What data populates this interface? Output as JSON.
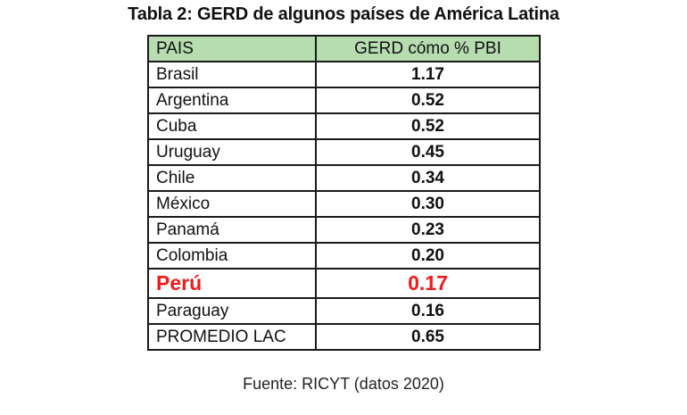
{
  "title": "Tabla 2: GERD de algunos países de América Latina",
  "table": {
    "headers": [
      "PAIS",
      "GERD cómo % PBI"
    ],
    "header_bg": "#b6dcb0",
    "highlight_color": "#f01a1a",
    "rows": [
      {
        "country": "Brasil",
        "value": "1.17"
      },
      {
        "country": "Argentina",
        "value": "0.52"
      },
      {
        "country": "Cuba",
        "value": "0.52"
      },
      {
        "country": "Uruguay",
        "value": "0.45"
      },
      {
        "country": "Chile",
        "value": "0.34"
      },
      {
        "country": "México",
        "value": "0.30"
      },
      {
        "country": "Panamá",
        "value": "0.23"
      },
      {
        "country": "Colombia",
        "value": "0.20"
      },
      {
        "country": "Perú",
        "value": "0.17",
        "highlighted": true
      },
      {
        "country": "Paraguay",
        "value": "0.16"
      },
      {
        "country": "PROMEDIO LAC",
        "value": "0.65"
      }
    ]
  },
  "source": "Fuente: RICYT (datos 2020)"
}
